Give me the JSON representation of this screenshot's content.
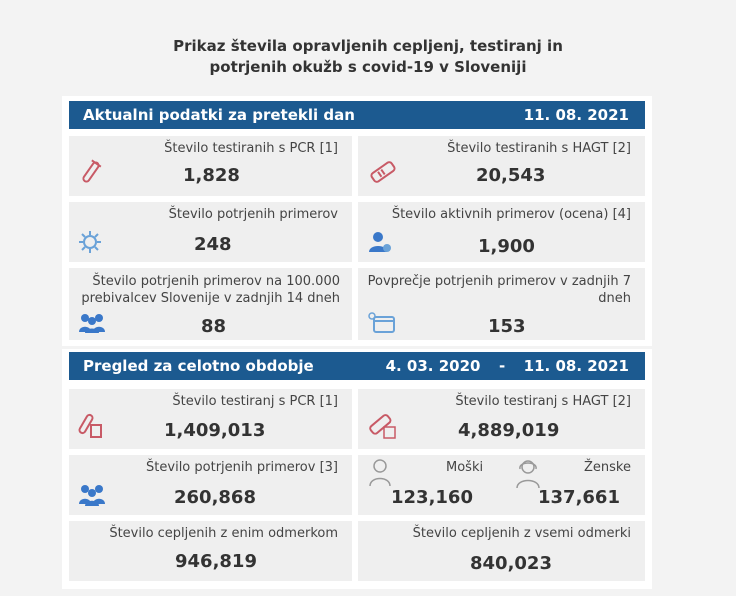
{
  "title": {
    "line1": "Prikaz števila opravljenih cepljenj, testiranj in",
    "line2": "potrjenih okužb s covid-19 v Sloveniji"
  },
  "daily": {
    "heading": "Aktualni podatki za pretekli dan",
    "date": "11. 08. 2021",
    "pcr": {
      "label": "Število testiranih s PCR [1]",
      "value": "1,828"
    },
    "hagt": {
      "label": "Število testiranih s HAGT [2]",
      "value": "20,543"
    },
    "confirmed": {
      "label": "Število potrjenih primerov",
      "value": "248"
    },
    "active": {
      "label": "Število aktivnih primerov (ocena) [4]",
      "value": "1,900"
    },
    "per100k": {
      "label_line1": "Število potrjenih primerov na 100.000",
      "label_line2": "prebivalcev Slovenije v zadnjih 14 dneh",
      "value": "88"
    },
    "avg7": {
      "label_line1": "Povprečje potrjenih primerov v zadnjih 7",
      "label_line2": "dneh",
      "value": "153"
    }
  },
  "overall": {
    "heading": "Pregled za celotno obdobje",
    "date_from": "4. 03. 2020",
    "date_sep": "-",
    "date_to": "11. 08. 2021",
    "pcr": {
      "label": "Število testiranj s PCR [1]",
      "value": "1,409,013"
    },
    "hagt": {
      "label": "Število testiranj s HAGT [2]",
      "value": "4,889,019"
    },
    "confirmed": {
      "label": "Število potrjenih primerov [3]",
      "value": "260,868"
    },
    "men": {
      "label": "Moški",
      "value": "123,160"
    },
    "women": {
      "label": "Ženske",
      "value": "137,661"
    },
    "vacc_one": {
      "label": "Število cepljenih z enim odmerkom",
      "value": "946,819"
    },
    "vacc_all": {
      "label": "Število cepljenih z vsemi odmerki",
      "value": "840,023"
    }
  },
  "colors": {
    "header_bar": "#1c5a90",
    "accent_red": "#c85a66",
    "accent_blue": "#3a78c9"
  }
}
